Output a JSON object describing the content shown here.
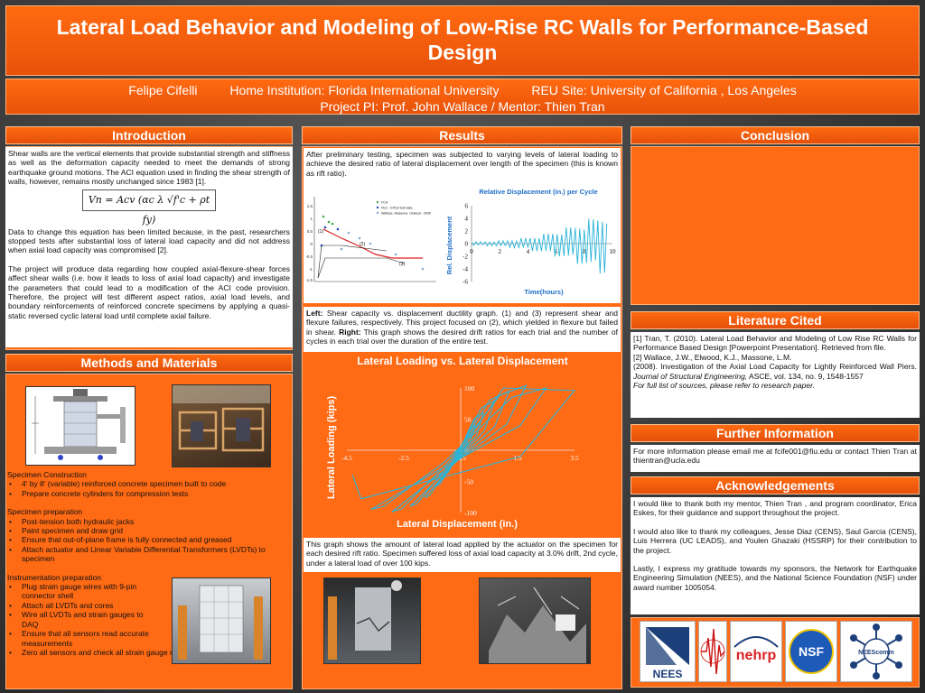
{
  "title": "Lateral Load Behavior and Modeling of Low-Rise RC Walls for Performance-Based Design",
  "authors": {
    "name": "Felipe Cifelli",
    "home": "Home Institution: Florida International University",
    "reu": "REU Site: University of California , Los Angeles",
    "pi": "Project PI: Prof. John Wallace / Mentor: Thien Tran"
  },
  "sections": {
    "introduction": "Introduction",
    "methods": "Methods and Materials",
    "results": "Results",
    "conclusion": "Conclusion",
    "literature": "Literature Cited",
    "further": "Further Information",
    "acknowledgements": "Acknowledgements"
  },
  "intro": {
    "p1": "Shear walls are the vertical elements that provide substantial strength and stiffness as well as the deformation capacity needed to meet the demands of strong earthquake ground motions. The ACI equation used in finding the shear strength of walls, however, remains mostly unchanged since 1983 [1].",
    "equation": "Vn = Acv (αc λ √f'c + ρt fy)",
    "p2": "Data to change this equation has been limited because, in the past, researchers stopped tests after substantial loss of lateral load capacity and did not address when axial load capacity was compromised [2].",
    "p3": "The project will produce data regarding how coupled axial-flexure-shear forces affect shear walls (i.e. how it leads to loss of axial load capacity) and investigate the parameters that could lead to a modification of the ACI code provision. Therefore, the project will test different aspect ratios, axial load levels, and boundary reinforcements of reinforced concrete specimens by applying a quasi-static reversed cyclic lateral load until complete axial failure."
  },
  "methods": {
    "construction_title": "Specimen Construction",
    "construction": [
      "4' by 8' (variable) reinforced concrete specimen built to code",
      "Prepare concrete cylinders for compression tests"
    ],
    "preparation_title": "Specimen preparation",
    "preparation": [
      "Post-tension both hydraulic jacks",
      "Paint specimen and draw grid",
      "Ensure that out-of-plane frame is fully connected and greased",
      "Attach actuator and Linear Variable Differential Transformers (LVDTs) to specimen"
    ],
    "instrumentation_title": "Instrumentation preparation",
    "instrumentation": [
      "Plug strain gauge wires with 9-pin connector shell",
      "Attach all LVDTs and cores",
      "Wire all LVDTs and strain gauges to DAQ",
      "Ensure that all sensors read accurate  measurements",
      "Zero all sensors  and check all strain gauge readings"
    ]
  },
  "results": {
    "intro": "After preliminary testing, specimen was subjected to varying levels of lateral loading to achieve the desired ratio of lateral displacement over length of the specimen (this is known as rift ratio).",
    "caption_left_label": "Left:",
    "caption_left": " Shear capacity vs. displacement ductility graph. (1) and (3) represent shear and flexure failures, respectively. This project focused on (2), which yielded in flexure but failed in shear. ",
    "caption_right_label": "Right:",
    "caption_right": " This graph shows the desired drift ratios for each trial and the number of cycles in each trial over the duration of the entire test.",
    "hyst_caption": "This graph shows the amount of lateral load applied by the actuator on the specimen for each desired rift ratio. Specimen suffered loss of axial load capacity at 3.0% drift, 2nd cycle, under a lateral load of over 100 kips."
  },
  "literature": {
    "ref1": "[1] Tran, T. (2010). Lateral Load Behavior and  Modeling of Low Rise RC Walls for Performance Based Design [Powerpoint Presentation]. Retrieved from file.",
    "ref2a": "[2] Wallace, J.W., Elwood, K.J., Massone, L.M.",
    "ref2b": "(2008). Investigation of the Axial Load Capacity for Lightly Reinforced Wall Piers. ",
    "ref2_journal": "Journal of Structural Engineering,",
    "ref2c": " ASCE, vol. 134, no. 9, 1548-1557",
    "ref_note": "For full list of sources, please refer to research paper."
  },
  "further": "For more information please email me at fcife001@fiu.edu or contact Thien Tran at thientran@ucla.edu",
  "acknowledgements": {
    "p1": "I would like to thank both my mentor, Thien Tran , and program coordinator, Erica Eskes, for their guidance and support throughout the project.",
    "p2": "I would also like to thank my colleagues,  Jesse Diaz (CENS), Saul Garcia (CENS), Luis Herrera (UC LEADS), and Youlen Ghazaki (HSSRP) for their contribution to the project.",
    "p3": "Lastly, I express my gratitude towards my sponsors, the Network for Earthquake Engineering Simulation (NEES), and the National Science Foundation (NSF) under award number 1005054."
  },
  "logos": {
    "nees": "NEES",
    "nehrp": "nehrp",
    "nsf": "NSF",
    "neescomm": "NEEScomm"
  },
  "colors": {
    "accent": "#ff6a10",
    "cyan": "#2ab4d8"
  },
  "chart_data": [
    {
      "type": "scatter",
      "title": "",
      "labels": [
        "(1)",
        "(2)",
        "(3)"
      ],
      "legend": [
        "FCA",
        "FEC - EPS2 test data",
        "Wallace, Massone, Orakcal - 2006"
      ],
      "xlabel": "",
      "ylabel": "",
      "y_ticks": [
        "1.5",
        "1",
        "0.5",
        "0",
        "-0.5",
        "-1",
        "-1.5"
      ]
    },
    {
      "type": "line",
      "title": "Relative Displacement (in.) per Cycle",
      "xlabel": "Time(hours)",
      "ylabel": "Rel. Displacement",
      "x_ticks": [
        0,
        2,
        4,
        6,
        8,
        10
      ],
      "y_ticks": [
        6,
        4,
        2,
        0,
        -2,
        -4,
        -6
      ],
      "xlim": [
        0,
        10
      ],
      "ylim": [
        -6,
        6
      ]
    },
    {
      "type": "line",
      "title": "Lateral Loading vs. Lateral Displacement",
      "xlabel": "Lateral Displacement (in.)",
      "ylabel": "Lateral Loading (kips)",
      "x_ticks": [
        "-4.5",
        "-2.5",
        "-0.5",
        "1.5",
        "3.5"
      ],
      "y_ticks": [
        "100",
        "50",
        "0",
        "-50",
        "-100"
      ],
      "xlim": [
        -4.5,
        3.5
      ],
      "ylim": [
        -100,
        100
      ]
    }
  ]
}
